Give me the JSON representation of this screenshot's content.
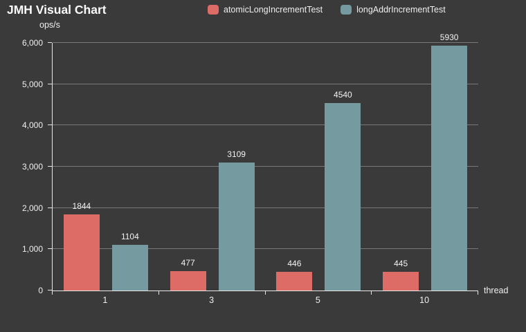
{
  "title": "JMH Visual Chart",
  "unit_label": "ops/s",
  "x_axis_label": "thread",
  "legend": [
    {
      "label": "atomicLongIncrementTest",
      "color": "#dd6b66"
    },
    {
      "label": "longAddrIncrementTest",
      "color": "#759aa0"
    }
  ],
  "colors": {
    "background": "#3a3a3a",
    "axis": "#e8e8e8",
    "gridline": "rgba(255,255,255,0.32)",
    "series1": "#dd6b66",
    "series2": "#759aa0"
  },
  "chart_data": {
    "type": "bar",
    "title": "JMH Visual Chart",
    "xlabel": "thread",
    "ylabel": "ops/s",
    "categories": [
      "1",
      "3",
      "5",
      "10"
    ],
    "series": [
      {
        "name": "atomicLongIncrementTest",
        "color": "#dd6b66",
        "values": [
          1844,
          477,
          446,
          445
        ]
      },
      {
        "name": "longAddrIncrementTest",
        "color": "#759aa0",
        "values": [
          1104,
          3109,
          4540,
          5930
        ]
      }
    ],
    "ylim": [
      0,
      6000
    ],
    "ytick_step": 1000,
    "ytick_labels": [
      "0",
      "1,000",
      "2,000",
      "3,000",
      "4,000",
      "5,000",
      "6,000"
    ],
    "grid": true,
    "legend_position": "top"
  }
}
